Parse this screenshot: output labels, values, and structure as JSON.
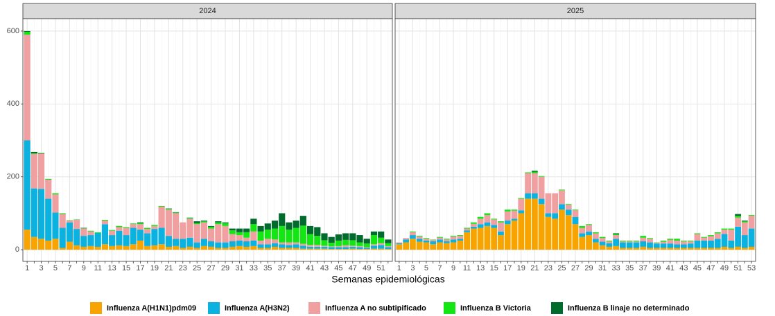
{
  "chart_data": {
    "type": "bar",
    "stacked": true,
    "x_label": "Semanas epidemiológicas",
    "ylim": [
      -32,
      634
    ],
    "yticks": [
      0,
      200,
      400,
      600
    ],
    "grid": true,
    "legend_position": "bottom",
    "series": [
      {
        "name": "Influenza A(H1N1)pdm09",
        "color": "#f7a400"
      },
      {
        "name": "Influenza A(H3N2)",
        "color": "#0bb2e0"
      },
      {
        "name": "Influenza A no subtipificado",
        "color": "#f0a0a0"
      },
      {
        "name": "Influenza B Victoria",
        "color": "#14e614"
      },
      {
        "name": "Influenza B linaje no determinado",
        "color": "#006b2c"
      }
    ],
    "facets": [
      {
        "title": "2024",
        "categories": [
          1,
          null,
          3,
          null,
          5,
          null,
          7,
          null,
          9,
          null,
          11,
          null,
          13,
          null,
          15,
          null,
          17,
          null,
          19,
          null,
          21,
          null,
          23,
          null,
          25,
          null,
          27,
          null,
          29,
          null,
          31,
          null,
          33,
          null,
          35,
          null,
          37,
          null,
          39,
          null,
          41,
          null,
          43,
          null,
          45,
          null,
          47,
          null,
          49,
          null,
          51,
          null
        ],
        "series": [
          {
            "values": [
              55,
              35,
              30,
              25,
              30,
              5,
              22,
              12,
              8,
              10,
              8,
              15,
              10,
              12,
              10,
              15,
              25,
              10,
              12,
              15,
              8,
              10,
              5,
              8,
              5,
              10,
              8,
              5,
              5,
              8,
              10,
              8,
              10,
              5,
              5,
              8,
              5,
              5,
              5,
              3,
              3,
              3,
              3,
              2,
              2,
              2,
              3,
              2,
              2,
              3,
              3,
              2
            ]
          },
          {
            "values": [
              245,
              133,
              137,
              115,
              72,
              55,
              53,
              45,
              30,
              30,
              38,
              55,
              30,
              40,
              30,
              45,
              30,
              35,
              45,
              45,
              30,
              20,
              25,
              25,
              15,
              20,
              15,
              15,
              15,
              15,
              15,
              15,
              15,
              10,
              10,
              10,
              10,
              8,
              10,
              8,
              5,
              5,
              5,
              5,
              5,
              5,
              5,
              5,
              3,
              8,
              10,
              5
            ]
          },
          {
            "values": [
              290,
              95,
              97,
              52,
              50,
              38,
              5,
              25,
              20,
              10,
              0,
              10,
              12,
              10,
              20,
              10,
              15,
              12,
              8,
              58,
              72,
              70,
              45,
              52,
              50,
              45,
              35,
              50,
              45,
              20,
              15,
              10,
              25,
              10,
              15,
              10,
              5,
              7,
              5,
              5,
              5,
              5,
              3,
              2,
              3,
              5,
              3,
              3,
              2,
              4,
              5,
              3
            ]
          },
          {
            "values": [
              8,
              2,
              1,
              2,
              3,
              2,
              1,
              1,
              1,
              2,
              2,
              2,
              2,
              3,
              2,
              2,
              3,
              3,
              3,
              2,
              2,
              2,
              0,
              2,
              3,
              3,
              5,
              5,
              8,
              10,
              8,
              15,
              20,
              25,
              25,
              30,
              45,
              35,
              40,
              50,
              30,
              25,
              15,
              10,
              15,
              15,
              15,
              10,
              10,
              25,
              15,
              8
            ]
          },
          {
            "values": [
              2,
              3,
              1,
              0,
              0,
              0,
              0,
              0,
              1,
              0,
              0,
              0,
              0,
              0,
              0,
              0,
              2,
              0,
              0,
              0,
              1,
              1,
              0,
              1,
              5,
              2,
              2,
              3,
              2,
              5,
              10,
              10,
              15,
              15,
              17,
              22,
              35,
              20,
              20,
              27,
              22,
              24,
              19,
              16,
              17,
              18,
              19,
              20,
              13,
              10,
              17,
              10
            ]
          }
        ]
      },
      {
        "title": "2025",
        "categories": [
          1,
          null,
          3,
          null,
          5,
          null,
          7,
          null,
          9,
          null,
          11,
          null,
          13,
          null,
          15,
          null,
          17,
          null,
          19,
          null,
          21,
          null,
          23,
          null,
          25,
          null,
          27,
          null,
          29,
          null,
          31,
          null,
          33,
          null,
          35,
          null,
          37,
          null,
          39,
          null,
          41,
          null,
          43,
          null,
          45,
          null,
          47,
          null,
          49,
          null,
          51,
          null,
          53
        ],
        "series": [
          {
            "values": [
              15,
              20,
              30,
              22,
              20,
              15,
              20,
              18,
              20,
              25,
              48,
              58,
              60,
              65,
              60,
              40,
              70,
              80,
              100,
              140,
              140,
              125,
              90,
              85,
              110,
              95,
              70,
              35,
              40,
              20,
              12,
              8,
              10,
              5,
              5,
              5,
              8,
              5,
              5,
              5,
              5,
              5,
              5,
              5,
              5,
              5,
              5,
              5,
              8,
              5,
              8,
              5,
              8
            ]
          },
          {
            "values": [
              3,
              8,
              10,
              8,
              5,
              8,
              8,
              5,
              8,
              5,
              5,
              5,
              10,
              10,
              8,
              10,
              10,
              5,
              8,
              15,
              15,
              15,
              10,
              15,
              15,
              15,
              20,
              10,
              10,
              10,
              10,
              10,
              20,
              15,
              15,
              15,
              15,
              15,
              12,
              12,
              12,
              10,
              10,
              12,
              20,
              20,
              20,
              25,
              35,
              20,
              55,
              35,
              50
            ]
          },
          {
            "values": [
              2,
              4,
              8,
              6,
              5,
              4,
              5,
              5,
              8,
              8,
              5,
              8,
              15,
              20,
              15,
              25,
              25,
              22,
              32,
              55,
              55,
              60,
              55,
              55,
              38,
              13,
              18,
              15,
              18,
              15,
              10,
              5,
              10,
              3,
              3,
              3,
              10,
              10,
              2,
              5,
              10,
              10,
              8,
              6,
              18,
              8,
              12,
              15,
              12,
              30,
              25,
              35,
              35
            ]
          },
          {
            "values": [
              0,
              0,
              2,
              2,
              2,
              1,
              2,
              2,
              2,
              2,
              2,
              4,
              5,
              5,
              2,
              3,
              5,
              3,
              2,
              2,
              4,
              2,
              0,
              0,
              2,
              2,
              2,
              5,
              2,
              3,
              3,
              2,
              3,
              2,
              2,
              2,
              5,
              2,
              1,
              3,
              3,
              5,
              2,
              2,
              2,
              2,
              3,
              3,
              3,
              3,
              5,
              3,
              2
            ]
          },
          {
            "values": [
              0,
              0,
              0,
              0,
              0,
              0,
              0,
              0,
              0,
              0,
              0,
              0,
              0,
              0,
              0,
              0,
              0,
              0,
              0,
              0,
              3,
              0,
              0,
              0,
              0,
              0,
              0,
              0,
              0,
              0,
              0,
              0,
              2,
              0,
              0,
              0,
              0,
              0,
              0,
              0,
              0,
              0,
              0,
              0,
              0,
              0,
              0,
              0,
              0,
              0,
              5,
              2,
              0
            ]
          }
        ]
      }
    ]
  }
}
